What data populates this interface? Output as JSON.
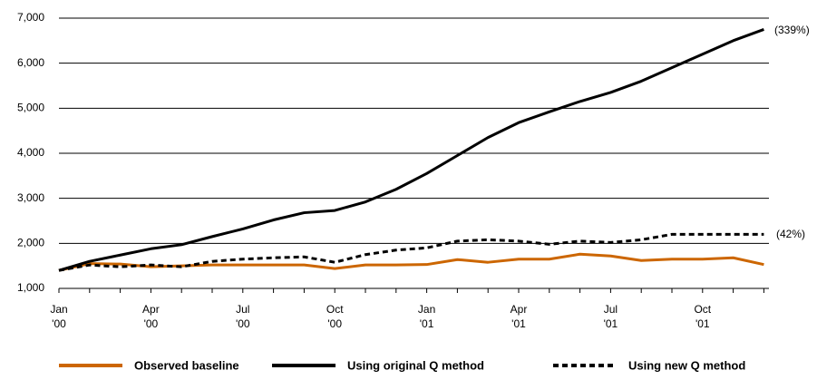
{
  "chart_data": {
    "type": "line",
    "categories": [
      [
        "Jan",
        "'00"
      ],
      null,
      null,
      [
        "Apr",
        "'00"
      ],
      null,
      null,
      [
        "Jul",
        "'00"
      ],
      null,
      null,
      [
        "Oct",
        "'00"
      ],
      null,
      null,
      [
        "Jan",
        "'01"
      ],
      null,
      null,
      [
        "Apr",
        "'01"
      ],
      null,
      null,
      [
        "Jul",
        "'01"
      ],
      null,
      null,
      [
        "Oct",
        "'01"
      ],
      null,
      null
    ],
    "series": [
      {
        "name": "Observed baseline",
        "color": "#cc6600",
        "dash": "solid",
        "values": [
          1400,
          1550,
          1540,
          1480,
          1500,
          1520,
          1520,
          1520,
          1520,
          1440,
          1520,
          1520,
          1530,
          1640,
          1580,
          1650,
          1650,
          1760,
          1720,
          1620,
          1650,
          1650,
          1680,
          1530
        ]
      },
      {
        "name": "Using original Q method",
        "color": "#000000",
        "dash": "solid",
        "values": [
          1400,
          1600,
          1740,
          1880,
          1970,
          2150,
          2320,
          2520,
          2680,
          2730,
          2920,
          3200,
          3550,
          3950,
          4350,
          4680,
          4920,
          5150,
          5350,
          5600,
          5900,
          6200,
          6500,
          6750
        ]
      },
      {
        "name": "Using new Q method",
        "color": "#000000",
        "dash": "dashed",
        "values": [
          1400,
          1520,
          1480,
          1520,
          1480,
          1600,
          1650,
          1680,
          1700,
          1580,
          1750,
          1850,
          1900,
          2050,
          2080,
          2050,
          1980,
          2050,
          2020,
          2080,
          2200,
          2200,
          2200,
          2200
        ]
      }
    ],
    "annotations": [
      "(339%)",
      "(42%)"
    ],
    "ylim": [
      1000,
      7000
    ],
    "yticks": [
      {
        "value": 1000,
        "label": "1,000"
      },
      {
        "value": 2000,
        "label": "2,000"
      },
      {
        "value": 3000,
        "label": "3,000"
      },
      {
        "value": 4000,
        "label": "4,000"
      },
      {
        "value": 5000,
        "label": "5,000"
      },
      {
        "value": 6000,
        "label": "6,000"
      },
      {
        "value": 7000,
        "label": "7,000"
      }
    ],
    "grid": true
  }
}
